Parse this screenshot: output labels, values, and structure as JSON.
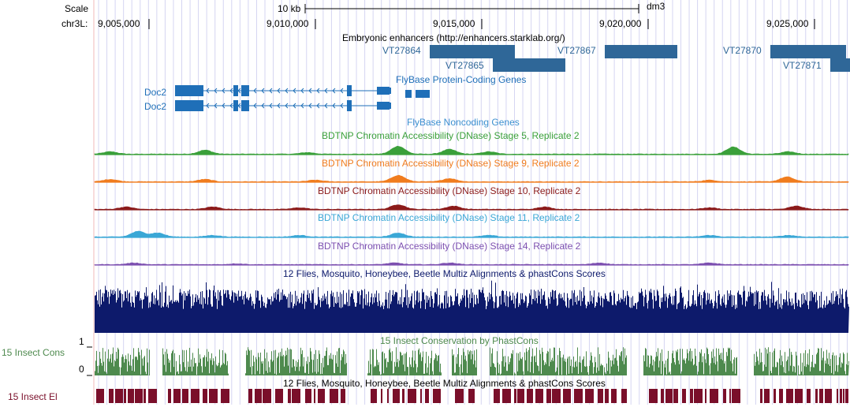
{
  "scale": {
    "label": "Scale",
    "bar_label": "10 kb",
    "assembly": "dm3"
  },
  "position": {
    "chrom_label": "chr3L:",
    "ticks": [
      "9,005,000",
      "9,010,000",
      "9,015,000",
      "9,020,000",
      "9,025,000"
    ]
  },
  "tracks": {
    "enhancers": {
      "title": "Embryonic enhancers (http://enhancers.starklab.org/)",
      "color": "#2f6798",
      "items": [
        {
          "name": "VT27864"
        },
        {
          "name": "VT27865"
        },
        {
          "name": "VT27867"
        },
        {
          "name": "VT27870"
        },
        {
          "name": "VT27871"
        }
      ]
    },
    "protein_coding": {
      "title": "FlyBase Protein-Coding Genes",
      "color": "#1f6fb8",
      "genes": [
        "Doc2",
        "Doc2"
      ]
    },
    "noncoding": {
      "title": "FlyBase Noncoding Genes",
      "color": "#3b8fd0"
    },
    "dnase": [
      {
        "title": "BDTNP Chromatin Accessibility (DNase) Stage 5, Replicate 2",
        "color": "#3aa03a"
      },
      {
        "title": "BDTNP Chromatin Accessibility (DNase) Stage 9, Replicate 2",
        "color": "#f07c1e"
      },
      {
        "title": "BDTNP Chromatin Accessibility (DNase) Stage 10, Replicate 2",
        "color": "#8b1a1a"
      },
      {
        "title": "BDTNP Chromatin Accessibility (DNase) Stage 11, Replicate 2",
        "color": "#3aa7d6"
      },
      {
        "title": "BDTNP Chromatin Accessibility (DNase) Stage 14, Replicate 2",
        "color": "#7c4fb0"
      }
    ],
    "multiz": {
      "title": "12 Flies, Mosquito, Honeybee, Beetle Multiz Alignments & phastCons Scores",
      "color": "#0d1a6b"
    },
    "cons": {
      "title": "15 Insect Conservation by PhastCons",
      "side_label": "15 Insect Cons",
      "axis_top": "1",
      "axis_bottom": "0",
      "color": "#4e8a4e"
    },
    "elements": {
      "title": "12 Flies, Mosquito, Honeybee, Beetle Multiz Alignments & phastCons Scores",
      "side_label": "15 Insect El",
      "color": "#7a0f2a"
    }
  }
}
